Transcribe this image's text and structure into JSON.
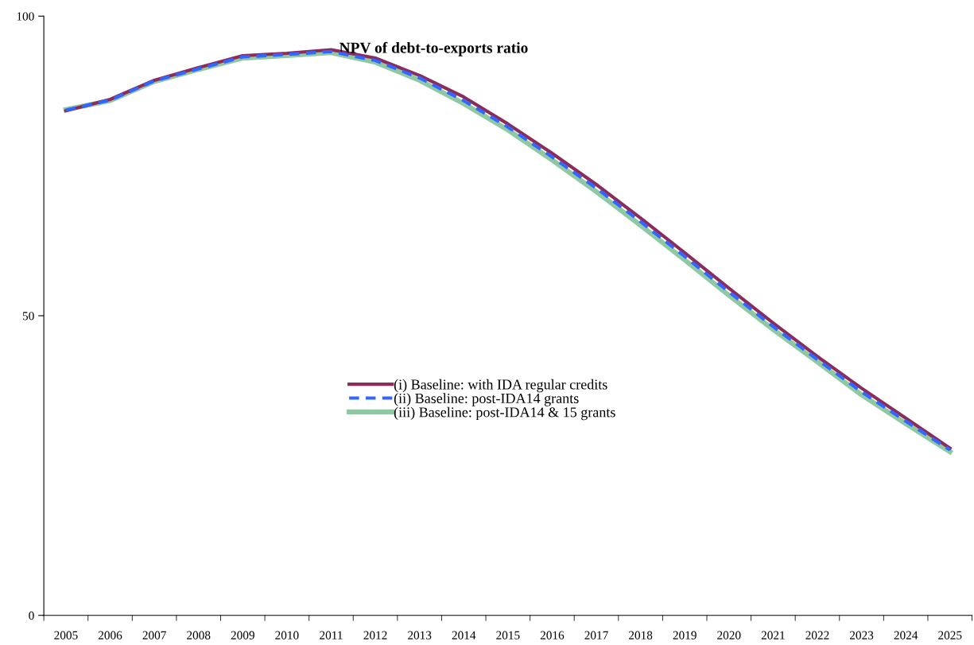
{
  "chart_data": {
    "type": "line",
    "title": "NPV of debt-to-exports ratio",
    "categories": [
      "2005",
      "2006",
      "2007",
      "2008",
      "2009",
      "2010",
      "2011",
      "2012",
      "2013",
      "2014",
      "2015",
      "2016",
      "2017",
      "2018",
      "2019",
      "2020",
      "2021",
      "2022",
      "2023",
      "2024",
      "2025"
    ],
    "series": [
      {
        "name": "(i) Baseline: with IDA regular credits",
        "color": "#8b2c5c",
        "line_style": "solid",
        "values": [
          84.2,
          86.1,
          89.3,
          91.4,
          93.4,
          93.8,
          94.4,
          93.0,
          90.1,
          86.5,
          82.0,
          77.1,
          71.9,
          66.3,
          60.5,
          54.6,
          48.8,
          43.2,
          37.9,
          32.9,
          27.9
        ]
      },
      {
        "name": "(ii) Baseline: post-IDA14 grants",
        "color": "#3366ff",
        "line_style": "dashed",
        "values": [
          84.3,
          86.0,
          89.2,
          91.2,
          93.2,
          93.6,
          94.1,
          92.6,
          89.7,
          85.9,
          81.5,
          76.5,
          71.3,
          65.7,
          59.9,
          54.0,
          48.2,
          42.7,
          37.3,
          32.4,
          27.6
        ]
      },
      {
        "name": "(iii) Baseline: post-IDA14 & 15 grants",
        "color": "#8fc9a3",
        "line_style": "solid",
        "values": [
          84.4,
          85.9,
          89.1,
          91.1,
          93.0,
          93.4,
          93.9,
          92.3,
          89.3,
          85.4,
          81.0,
          76.0,
          70.7,
          65.1,
          59.3,
          53.4,
          47.7,
          42.3,
          36.8,
          32.0,
          27.3
        ]
      }
    ],
    "ylim": [
      0,
      100
    ],
    "yticks": [
      0,
      50,
      100
    ],
    "grid": false,
    "legend": "center",
    "marker": "none"
  }
}
